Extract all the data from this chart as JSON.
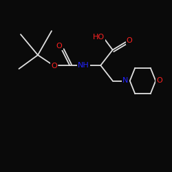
{
  "bg_color": "#0a0a0a",
  "bond_color": "#e0e0e0",
  "atom_colors": {
    "O": "#ff2222",
    "N": "#2222ff",
    "C": "#e0e0e0"
  },
  "font_size_atom": 8.0,
  "line_width": 1.3
}
